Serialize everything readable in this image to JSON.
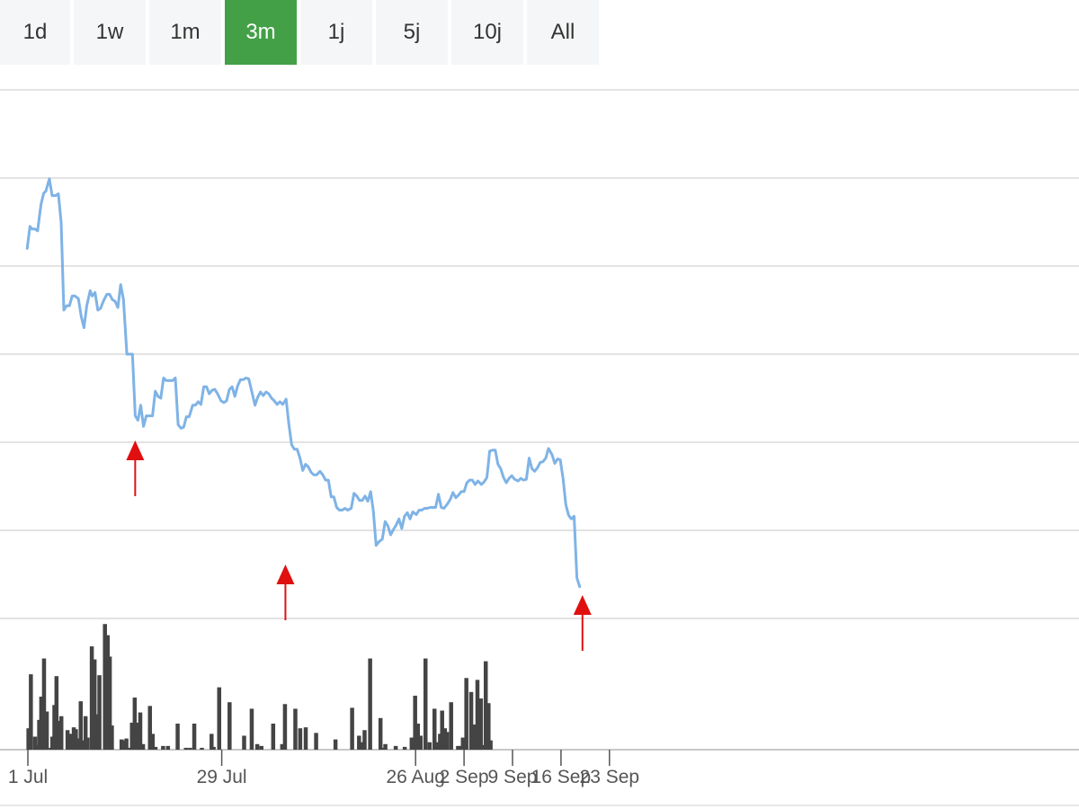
{
  "range_selector": {
    "buttons": [
      "1d",
      "1w",
      "1m",
      "3m",
      "1j",
      "5j",
      "10j",
      "All"
    ],
    "selected": "3m",
    "active_color": "#43a047"
  },
  "colors": {
    "line": "#7fb3e6",
    "volume": "#444444",
    "marker": "#e01010",
    "grid": "#e3e3e3"
  },
  "chart_data": {
    "type": "line",
    "title": "",
    "xlabel": "",
    "ylabel": "",
    "x_ticks": [
      {
        "label": "1 Jul",
        "day": 0
      },
      {
        "label": "29 Jul",
        "day": 28
      },
      {
        "label": "26 Aug",
        "day": 56
      },
      {
        "label": "2 Sep",
        "day": 63
      },
      {
        "label": "9 Sep",
        "day": 70
      },
      {
        "label": "16 Sep",
        "day": 77
      },
      {
        "label": "23 Sep",
        "day": 84
      }
    ],
    "grid": true,
    "y_gridline_count": 7,
    "price_range": [
      0,
      6
    ],
    "price": [
      [
        -0.1,
        4.2
      ],
      [
        0.3,
        4.45
      ],
      [
        0.6,
        4.42
      ],
      [
        1,
        4.42
      ],
      [
        1.4,
        4.4
      ],
      [
        1.9,
        4.7
      ],
      [
        2.3,
        4.83
      ],
      [
        2.6,
        4.85
      ],
      [
        3.1,
        4.99
      ],
      [
        3.5,
        4.8
      ],
      [
        4,
        4.8
      ],
      [
        4.4,
        4.82
      ],
      [
        4.8,
        4.5
      ],
      [
        5.2,
        3.5
      ],
      [
        5.6,
        3.55
      ],
      [
        6,
        3.55
      ],
      [
        6.4,
        3.66
      ],
      [
        6.8,
        3.66
      ],
      [
        7.3,
        3.63
      ],
      [
        7.7,
        3.43
      ],
      [
        8.1,
        3.3
      ],
      [
        8.5,
        3.55
      ],
      [
        9,
        3.72
      ],
      [
        9.3,
        3.66
      ],
      [
        9.7,
        3.7
      ],
      [
        10.1,
        3.5
      ],
      [
        10.5,
        3.52
      ],
      [
        10.9,
        3.6
      ],
      [
        11.4,
        3.68
      ],
      [
        11.8,
        3.68
      ],
      [
        12.2,
        3.62
      ],
      [
        12.6,
        3.6
      ],
      [
        13,
        3.53
      ],
      [
        13.4,
        3.79
      ],
      [
        13.8,
        3.62
      ],
      [
        14.3,
        3.0
      ],
      [
        14.7,
        3.0
      ],
      [
        15.1,
        3.0
      ],
      [
        15.5,
        2.3
      ],
      [
        15.9,
        2.25
      ],
      [
        16.3,
        2.42
      ],
      [
        16.7,
        2.18
      ],
      [
        17.1,
        2.3
      ],
      [
        17.5,
        2.3
      ],
      [
        18,
        2.3
      ],
      [
        18.4,
        2.58
      ],
      [
        18.8,
        2.52
      ],
      [
        19.2,
        2.5
      ],
      [
        19.6,
        2.73
      ],
      [
        20,
        2.7
      ],
      [
        20.4,
        2.7
      ],
      [
        20.9,
        2.7
      ],
      [
        21.3,
        2.73
      ],
      [
        21.7,
        2.2
      ],
      [
        22.1,
        2.16
      ],
      [
        22.5,
        2.17
      ],
      [
        22.9,
        2.29
      ],
      [
        23.3,
        2.29
      ],
      [
        23.8,
        2.42
      ],
      [
        24.2,
        2.42
      ],
      [
        24.6,
        2.46
      ],
      [
        25,
        2.43
      ],
      [
        25.4,
        2.63
      ],
      [
        25.8,
        2.63
      ],
      [
        26.2,
        2.55
      ],
      [
        26.6,
        2.59
      ],
      [
        27,
        2.6
      ],
      [
        27.4,
        2.55
      ],
      [
        27.9,
        2.47
      ],
      [
        28.3,
        2.45
      ],
      [
        28.7,
        2.47
      ],
      [
        29.1,
        2.6
      ],
      [
        29.5,
        2.63
      ],
      [
        29.9,
        2.52
      ],
      [
        30.3,
        2.64
      ],
      [
        30.7,
        2.71
      ],
      [
        31.1,
        2.71
      ],
      [
        31.5,
        2.73
      ],
      [
        31.9,
        2.72
      ],
      [
        32.3,
        2.59
      ],
      [
        32.8,
        2.42
      ],
      [
        33.2,
        2.51
      ],
      [
        33.6,
        2.57
      ],
      [
        34,
        2.53
      ],
      [
        34.4,
        2.57
      ],
      [
        34.8,
        2.55
      ],
      [
        35.2,
        2.5
      ],
      [
        35.6,
        2.47
      ],
      [
        36,
        2.43
      ],
      [
        36.4,
        2.46
      ],
      [
        36.8,
        2.43
      ],
      [
        37.3,
        2.49
      ],
      [
        37.7,
        2.2
      ],
      [
        38.1,
        1.97
      ],
      [
        38.5,
        1.92
      ],
      [
        38.9,
        1.92
      ],
      [
        39.3,
        1.82
      ],
      [
        39.7,
        1.68
      ],
      [
        40.1,
        1.75
      ],
      [
        40.5,
        1.72
      ],
      [
        40.9,
        1.66
      ],
      [
        41.3,
        1.63
      ],
      [
        41.7,
        1.63
      ],
      [
        42.2,
        1.67
      ],
      [
        42.6,
        1.63
      ],
      [
        43,
        1.57
      ],
      [
        43.4,
        1.57
      ],
      [
        43.8,
        1.38
      ],
      [
        44.2,
        1.38
      ],
      [
        44.6,
        1.26
      ],
      [
        45,
        1.23
      ],
      [
        45.4,
        1.23
      ],
      [
        45.8,
        1.25
      ],
      [
        46.2,
        1.23
      ],
      [
        46.7,
        1.25
      ],
      [
        47.1,
        1.42
      ],
      [
        47.5,
        1.39
      ],
      [
        47.9,
        1.34
      ],
      [
        48.3,
        1.34
      ],
      [
        48.7,
        1.39
      ],
      [
        49.1,
        1.33
      ],
      [
        49.5,
        1.44
      ],
      [
        49.9,
        1.22
      ],
      [
        50.3,
        0.83
      ],
      [
        50.7,
        0.87
      ],
      [
        51.2,
        0.9
      ],
      [
        51.6,
        1.1
      ],
      [
        52,
        1.05
      ],
      [
        52.4,
        0.95
      ],
      [
        52.8,
        1.01
      ],
      [
        53.2,
        1.06
      ],
      [
        53.6,
        1.13
      ],
      [
        54,
        1.02
      ],
      [
        54.4,
        1.16
      ],
      [
        54.8,
        1.2
      ],
      [
        55.2,
        1.13
      ],
      [
        55.6,
        1.21
      ],
      [
        56.1,
        1.18
      ],
      [
        56.5,
        1.23
      ],
      [
        56.9,
        1.23
      ],
      [
        57.3,
        1.25
      ],
      [
        57.7,
        1.25
      ],
      [
        58.1,
        1.26
      ],
      [
        58.5,
        1.26
      ],
      [
        58.9,
        1.26
      ],
      [
        59.3,
        1.41
      ],
      [
        59.7,
        1.26
      ],
      [
        60.1,
        1.25
      ],
      [
        60.6,
        1.3
      ],
      [
        61,
        1.35
      ],
      [
        61.4,
        1.43
      ],
      [
        61.8,
        1.37
      ],
      [
        62.2,
        1.4
      ],
      [
        62.6,
        1.44
      ],
      [
        63,
        1.44
      ],
      [
        63.4,
        1.54
      ],
      [
        63.8,
        1.57
      ],
      [
        64.2,
        1.57
      ],
      [
        64.6,
        1.52
      ],
      [
        65,
        1.56
      ],
      [
        65.5,
        1.52
      ],
      [
        65.9,
        1.55
      ],
      [
        66.3,
        1.6
      ],
      [
        66.7,
        1.9
      ],
      [
        67.1,
        1.91
      ],
      [
        67.5,
        1.91
      ],
      [
        67.9,
        1.75
      ],
      [
        68.3,
        1.7
      ],
      [
        68.7,
        1.6
      ],
      [
        69.1,
        1.54
      ],
      [
        69.5,
        1.59
      ],
      [
        69.9,
        1.62
      ],
      [
        70.3,
        1.58
      ],
      [
        70.8,
        1.56
      ],
      [
        71.2,
        1.59
      ],
      [
        71.6,
        1.57
      ],
      [
        72,
        1.58
      ],
      [
        72.4,
        1.82
      ],
      [
        72.8,
        1.7
      ],
      [
        73.2,
        1.67
      ],
      [
        73.6,
        1.71
      ],
      [
        74,
        1.77
      ],
      [
        74.4,
        1.78
      ],
      [
        74.8,
        1.82
      ],
      [
        75.2,
        1.93
      ],
      [
        75.7,
        1.86
      ],
      [
        76.1,
        1.76
      ],
      [
        76.5,
        1.81
      ],
      [
        76.9,
        1.8
      ],
      [
        77.3,
        1.59
      ],
      [
        77.7,
        1.29
      ],
      [
        78.1,
        1.17
      ],
      [
        78.5,
        1.13
      ],
      [
        78.9,
        1.16
      ],
      [
        79.3,
        0.46
      ],
      [
        79.7,
        0.36
      ]
    ],
    "volume_range": [
      0,
      11
    ],
    "volume": [
      [
        0.05,
        2.3
      ],
      [
        0.4,
        8.1
      ],
      [
        1.0,
        1.4
      ],
      [
        1.4,
        0.5
      ],
      [
        1.6,
        3.2
      ],
      [
        1.9,
        5.7
      ],
      [
        2.3,
        9.8
      ],
      [
        2.7,
        4.1
      ],
      [
        3.3,
        0.2
      ],
      [
        3.5,
        1.4
      ],
      [
        3.8,
        4.8
      ],
      [
        4.1,
        7.9
      ],
      [
        4.5,
        3.1
      ],
      [
        4.8,
        3.6
      ],
      [
        5.7,
        2.1
      ],
      [
        6.0,
        1.7
      ],
      [
        6.3,
        1.7
      ],
      [
        6.6,
        2.4
      ],
      [
        6.9,
        2.2
      ],
      [
        7.2,
        1.2
      ],
      [
        7.6,
        5.2
      ],
      [
        8.0,
        1.0
      ],
      [
        8.3,
        3.6
      ],
      [
        8.6,
        1.3
      ],
      [
        9.2,
        11.1
      ],
      [
        9.6,
        9.7
      ],
      [
        9.9,
        3.8
      ],
      [
        10.3,
        8.0
      ],
      [
        11.1,
        13.5
      ],
      [
        11.5,
        12.3
      ],
      [
        11.8,
        10.0
      ],
      [
        12.1,
        2.6
      ],
      [
        13.5,
        1.1
      ],
      [
        13.9,
        1.0
      ],
      [
        14.2,
        1.2
      ],
      [
        14.5,
        0.2
      ],
      [
        15.0,
        2.9
      ],
      [
        15.4,
        5.6
      ],
      [
        15.8,
        2.9
      ],
      [
        16.2,
        4.0
      ],
      [
        16.6,
        0.6
      ],
      [
        17.6,
        4.7
      ],
      [
        18.0,
        1.7
      ],
      [
        18.4,
        0.3
      ],
      [
        19.5,
        0.4
      ],
      [
        20.2,
        0.4
      ],
      [
        21.6,
        2.8
      ],
      [
        22.8,
        0.2
      ],
      [
        23.4,
        0.2
      ],
      [
        24.0,
        2.8
      ],
      [
        25.1,
        0.2
      ],
      [
        26.5,
        1.7
      ],
      [
        26.8,
        0.3
      ],
      [
        27.6,
        6.7
      ],
      [
        29.1,
        5.1
      ],
      [
        31.2,
        1.5
      ],
      [
        32.3,
        4.4
      ],
      [
        33.1,
        0.6
      ],
      [
        33.7,
        0.4
      ],
      [
        35.4,
        2.8
      ],
      [
        36.7,
        0.6
      ],
      [
        37.1,
        4.9
      ],
      [
        38.6,
        4.4
      ],
      [
        39.3,
        2.3
      ],
      [
        40.1,
        2.4
      ],
      [
        41.6,
        1.8
      ],
      [
        44.4,
        1.1
      ],
      [
        46.8,
        4.5
      ],
      [
        47.8,
        1.5
      ],
      [
        48.3,
        0.8
      ],
      [
        48.6,
        2.1
      ],
      [
        49.4,
        9.8
      ],
      [
        50.9,
        3.4
      ],
      [
        51.2,
        0.2
      ],
      [
        51.6,
        0.6
      ],
      [
        53.1,
        0.4
      ],
      [
        54.4,
        0.3
      ],
      [
        55.4,
        1.3
      ],
      [
        55.9,
        5.8
      ],
      [
        56.3,
        2.8
      ],
      [
        56.7,
        1.5
      ],
      [
        57.4,
        9.8
      ],
      [
        58.0,
        0.8
      ],
      [
        58.7,
        4.4
      ],
      [
        59.1,
        0.8
      ],
      [
        59.5,
        1.7
      ],
      [
        59.8,
        4.2
      ],
      [
        60.2,
        2.3
      ],
      [
        60.5,
        1.9
      ],
      [
        61.1,
        5.1
      ],
      [
        62.1,
        0.4
      ],
      [
        62.5,
        0.4
      ],
      [
        62.8,
        1.3
      ],
      [
        63.3,
        7.7
      ],
      [
        64.0,
        6.2
      ],
      [
        64.4,
        2.7
      ],
      [
        64.9,
        7.5
      ],
      [
        65.4,
        5.5
      ],
      [
        65.8,
        0.5
      ],
      [
        66.1,
        9.5
      ],
      [
        66.5,
        5.0
      ],
      [
        66.8,
        1.0
      ]
    ],
    "markers": [
      {
        "type": "up-arrow",
        "day": 15.5
      },
      {
        "type": "up-arrow",
        "day": 37.2
      },
      {
        "type": "up-arrow",
        "day": 80.1
      }
    ]
  }
}
